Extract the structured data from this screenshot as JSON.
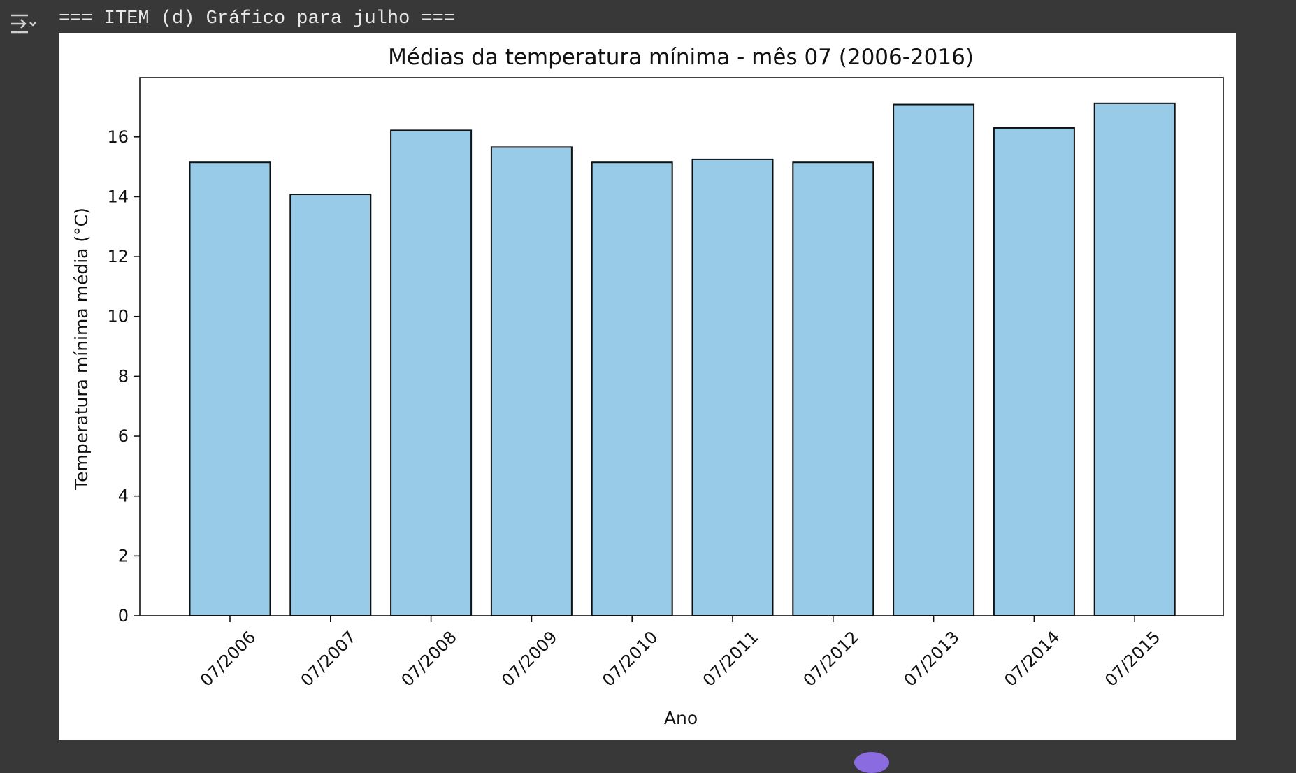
{
  "output": {
    "text": "=== ITEM (d) Gráfico para julho ==="
  },
  "colors": {
    "background": "#383838",
    "bar_fill": "#97cbe8",
    "bar_edge": "#111111"
  },
  "icons": {
    "output_toggle": "output-collapse-icon"
  },
  "chart_data": {
    "type": "bar",
    "title": "Médias da temperatura mínima - mês 07 (2006-2016)",
    "xlabel": "Ano",
    "ylabel": "Temperatura mínima média (°C)",
    "categories": [
      "07/2006",
      "07/2007",
      "07/2008",
      "07/2009",
      "07/2010",
      "07/2011",
      "07/2012",
      "07/2013",
      "07/2014",
      "07/2015"
    ],
    "values": [
      15.15,
      14.08,
      16.22,
      15.66,
      15.15,
      15.25,
      15.15,
      17.08,
      16.3,
      17.12
    ],
    "ylim": [
      0,
      17.98
    ],
    "yticks": [
      0,
      2,
      4,
      6,
      8,
      10,
      12,
      14,
      16
    ],
    "grid": false,
    "legend": "none"
  }
}
